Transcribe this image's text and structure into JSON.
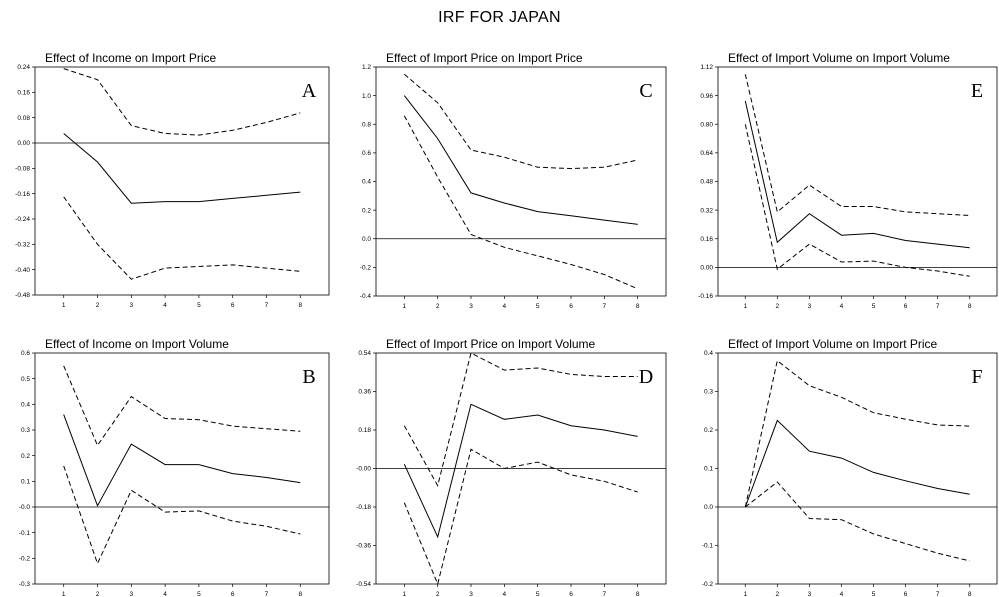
{
  "title": "IRF FOR JAPAN",
  "chart_data": [
    {
      "id": "A",
      "type": "line",
      "letter": "A",
      "title": "Effect of Income on Import Price",
      "x": [
        1,
        2,
        3,
        4,
        5,
        6,
        7,
        8
      ],
      "ylim": [
        -0.48,
        0.24
      ],
      "yticks": [
        "0.24",
        "0.16",
        "0.08",
        "0.00",
        "-0.08",
        "-0.16",
        "-0.24",
        "-0.32",
        "-0.40",
        "-0.48"
      ],
      "xticks": [
        "1",
        "2",
        "3",
        "4",
        "5",
        "6",
        "7",
        "8"
      ],
      "series": [
        {
          "style": "solid",
          "values": [
            0.03,
            -0.06,
            -0.19,
            -0.185,
            -0.185,
            -0.175,
            -0.165,
            -0.155
          ]
        },
        {
          "style": "dashed",
          "values": [
            0.235,
            0.2,
            0.055,
            0.03,
            0.025,
            0.04,
            0.065,
            0.095
          ]
        },
        {
          "style": "dashed",
          "values": [
            -0.17,
            -0.32,
            -0.43,
            -0.395,
            -0.39,
            -0.385,
            -0.395,
            -0.405
          ]
        }
      ]
    },
    {
      "id": "C",
      "type": "line",
      "letter": "C",
      "title": "Effect of Import Price on Import Price",
      "x": [
        1,
        2,
        3,
        4,
        5,
        6,
        7,
        8
      ],
      "ylim": [
        -0.4,
        1.2
      ],
      "yticks": [
        "1.2",
        "1.0",
        "0.8",
        "0.6",
        "0.4",
        "0.2",
        "0.0",
        "-0.2",
        "-0.4"
      ],
      "xticks": [
        "1",
        "2",
        "3",
        "4",
        "5",
        "6",
        "7",
        "8"
      ],
      "series": [
        {
          "style": "solid",
          "values": [
            1.0,
            0.7,
            0.32,
            0.25,
            0.19,
            0.16,
            0.13,
            0.1
          ]
        },
        {
          "style": "dashed",
          "values": [
            1.15,
            0.95,
            0.62,
            0.57,
            0.5,
            0.49,
            0.5,
            0.55
          ]
        },
        {
          "style": "dashed",
          "values": [
            0.86,
            0.43,
            0.03,
            -0.06,
            -0.12,
            -0.18,
            -0.25,
            -0.35
          ]
        }
      ]
    },
    {
      "id": "E",
      "type": "line",
      "letter": "E",
      "title": "Effect of Import Volume on Import Volume",
      "x": [
        1,
        2,
        3,
        4,
        5,
        6,
        7,
        8
      ],
      "ylim": [
        -0.16,
        1.12
      ],
      "yticks": [
        "1.12",
        "0.96",
        "0.80",
        "0.64",
        "0.48",
        "0.32",
        "0.16",
        "0.00",
        "-0.16"
      ],
      "xticks": [
        "1",
        "2",
        "3",
        "4",
        "5",
        "6",
        "7",
        "8"
      ],
      "series": [
        {
          "style": "solid",
          "values": [
            0.93,
            0.14,
            0.3,
            0.18,
            0.19,
            0.15,
            0.13,
            0.11
          ]
        },
        {
          "style": "dashed",
          "values": [
            1.08,
            0.31,
            0.46,
            0.34,
            0.34,
            0.31,
            0.3,
            0.29
          ]
        },
        {
          "style": "dashed",
          "values": [
            0.8,
            -0.01,
            0.13,
            0.03,
            0.035,
            0.0,
            -0.02,
            -0.05
          ]
        }
      ]
    },
    {
      "id": "B",
      "type": "line",
      "letter": "B",
      "title": "Effect of Income on Import Volume",
      "x": [
        1,
        2,
        3,
        4,
        5,
        6,
        7,
        8
      ],
      "ylim": [
        -0.3,
        0.6
      ],
      "yticks": [
        "0.6",
        "0.5",
        "0.4",
        "0.3",
        "0.2",
        "0.1",
        "-0.0",
        "-0.1",
        "-0.2",
        "-0.3"
      ],
      "xticks": [
        "1",
        "2",
        "3",
        "4",
        "5",
        "6",
        "7",
        "8"
      ],
      "series": [
        {
          "style": "solid",
          "values": [
            0.36,
            0.005,
            0.245,
            0.165,
            0.165,
            0.13,
            0.115,
            0.095
          ]
        },
        {
          "style": "dashed",
          "values": [
            0.55,
            0.24,
            0.43,
            0.345,
            0.34,
            0.315,
            0.305,
            0.295
          ]
        },
        {
          "style": "dashed",
          "values": [
            0.16,
            -0.22,
            0.065,
            -0.02,
            -0.015,
            -0.055,
            -0.075,
            -0.105
          ]
        }
      ]
    },
    {
      "id": "D",
      "type": "line",
      "letter": "D",
      "title": "Effect of Import Price on Import Volume",
      "x": [
        1,
        2,
        3,
        4,
        5,
        6,
        7,
        8
      ],
      "ylim": [
        -0.54,
        0.54
      ],
      "yticks": [
        "0.54",
        "0.36",
        "0.18",
        "-0.00",
        "-0.18",
        "-0.36",
        "-0.54"
      ],
      "xticks": [
        "1",
        "2",
        "3",
        "4",
        "5",
        "6",
        "7",
        "8"
      ],
      "series": [
        {
          "style": "solid",
          "values": [
            0.02,
            -0.32,
            0.3,
            0.23,
            0.25,
            0.2,
            0.18,
            0.15
          ]
        },
        {
          "style": "dashed",
          "values": [
            0.2,
            -0.08,
            0.54,
            0.46,
            0.47,
            0.44,
            0.43,
            0.43
          ]
        },
        {
          "style": "dashed",
          "values": [
            -0.16,
            -0.54,
            0.09,
            0.0,
            0.03,
            -0.03,
            -0.06,
            -0.11
          ]
        }
      ]
    },
    {
      "id": "F",
      "type": "line",
      "letter": "F",
      "title": "Effect of Import Volume on Import Price",
      "x": [
        1,
        2,
        3,
        4,
        5,
        6,
        7,
        8
      ],
      "ylim": [
        -0.2,
        0.4
      ],
      "yticks": [
        "0.4",
        "0.3",
        "0.2",
        "0.1",
        "0.0",
        "-0.1",
        "-0.2"
      ],
      "xticks": [
        "1",
        "2",
        "3",
        "4",
        "5",
        "6",
        "7",
        "8"
      ],
      "series": [
        {
          "style": "solid",
          "values": [
            0.0,
            0.225,
            0.145,
            0.127,
            0.09,
            0.068,
            0.048,
            0.033
          ]
        },
        {
          "style": "dashed",
          "values": [
            0.0,
            0.38,
            0.315,
            0.285,
            0.245,
            0.228,
            0.213,
            0.21
          ]
        },
        {
          "style": "dashed",
          "values": [
            0.0,
            0.065,
            -0.03,
            -0.033,
            -0.07,
            -0.095,
            -0.12,
            -0.14
          ]
        }
      ]
    }
  ]
}
